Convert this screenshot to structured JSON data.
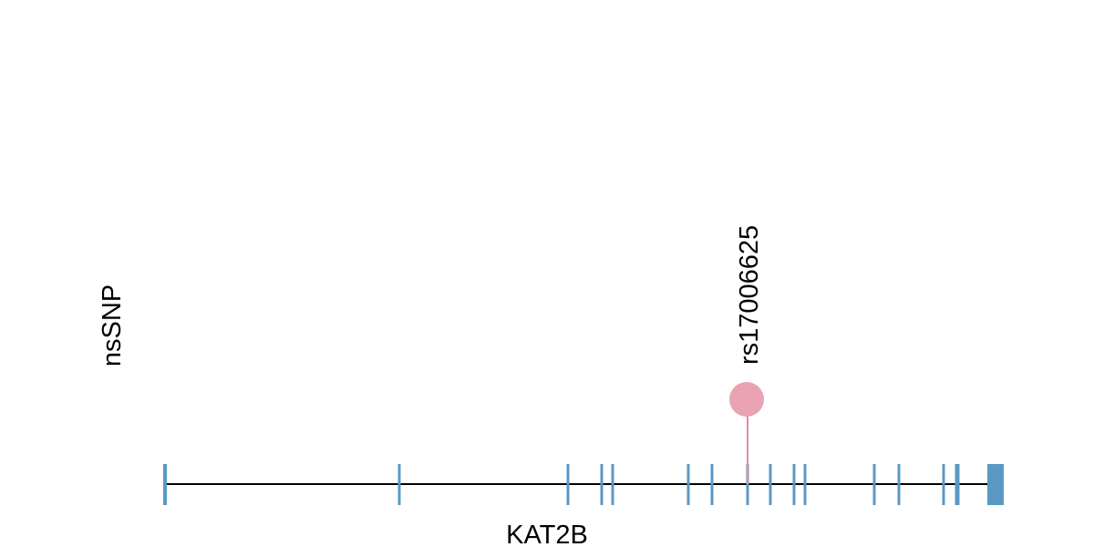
{
  "y_label": "nsSNP",
  "gene": {
    "label": "KAT2B"
  },
  "snps": [
    {
      "label": "rs17006625"
    }
  ]
}
